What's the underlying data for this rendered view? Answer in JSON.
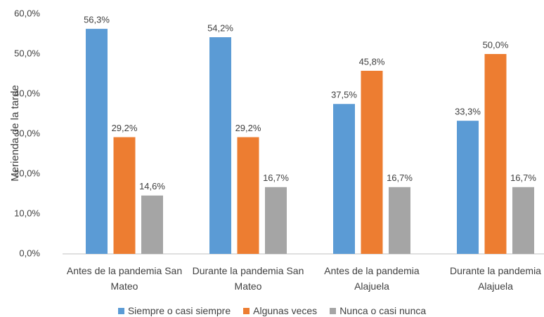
{
  "chart_data": {
    "type": "bar",
    "y_label": "Merienda de la tarde",
    "categories": [
      "Antes de la pandemia San Mateo",
      "Durante la pandemia San Mateo",
      "Antes de la pandemia Alajuela",
      "Durante la pandemia Alajuela"
    ],
    "series": [
      {
        "name": "Siempre o casi siempre",
        "color": "#5b9bd5",
        "values": [
          56.3,
          54.2,
          37.5,
          33.3
        ],
        "value_labels": [
          "56,3%",
          "54,2%",
          "37,5%",
          "33,3%"
        ]
      },
      {
        "name": "Algunas veces",
        "color": "#ed7d31",
        "values": [
          29.2,
          29.2,
          45.8,
          50.0
        ],
        "value_labels": [
          "29,2%",
          "29,2%",
          "45,8%",
          "50,0%"
        ]
      },
      {
        "name": "Nunca o casi nunca",
        "color": "#a5a5a5",
        "values": [
          14.6,
          16.7,
          16.7,
          16.7
        ],
        "value_labels": [
          "14,6%",
          "16,7%",
          "16,7%",
          "16,7%"
        ]
      }
    ],
    "ylim": [
      0,
      60
    ],
    "yticks": [
      {
        "value": 0,
        "label": "0,0%"
      },
      {
        "value": 10,
        "label": "10,0%"
      },
      {
        "value": 20,
        "label": "20,0%"
      },
      {
        "value": 30,
        "label": "30,0%"
      },
      {
        "value": 40,
        "label": "40,0%"
      },
      {
        "value": 50,
        "label": "50,0%"
      },
      {
        "value": 60,
        "label": "60,0%"
      }
    ],
    "grid": false,
    "legend": "bottom"
  }
}
